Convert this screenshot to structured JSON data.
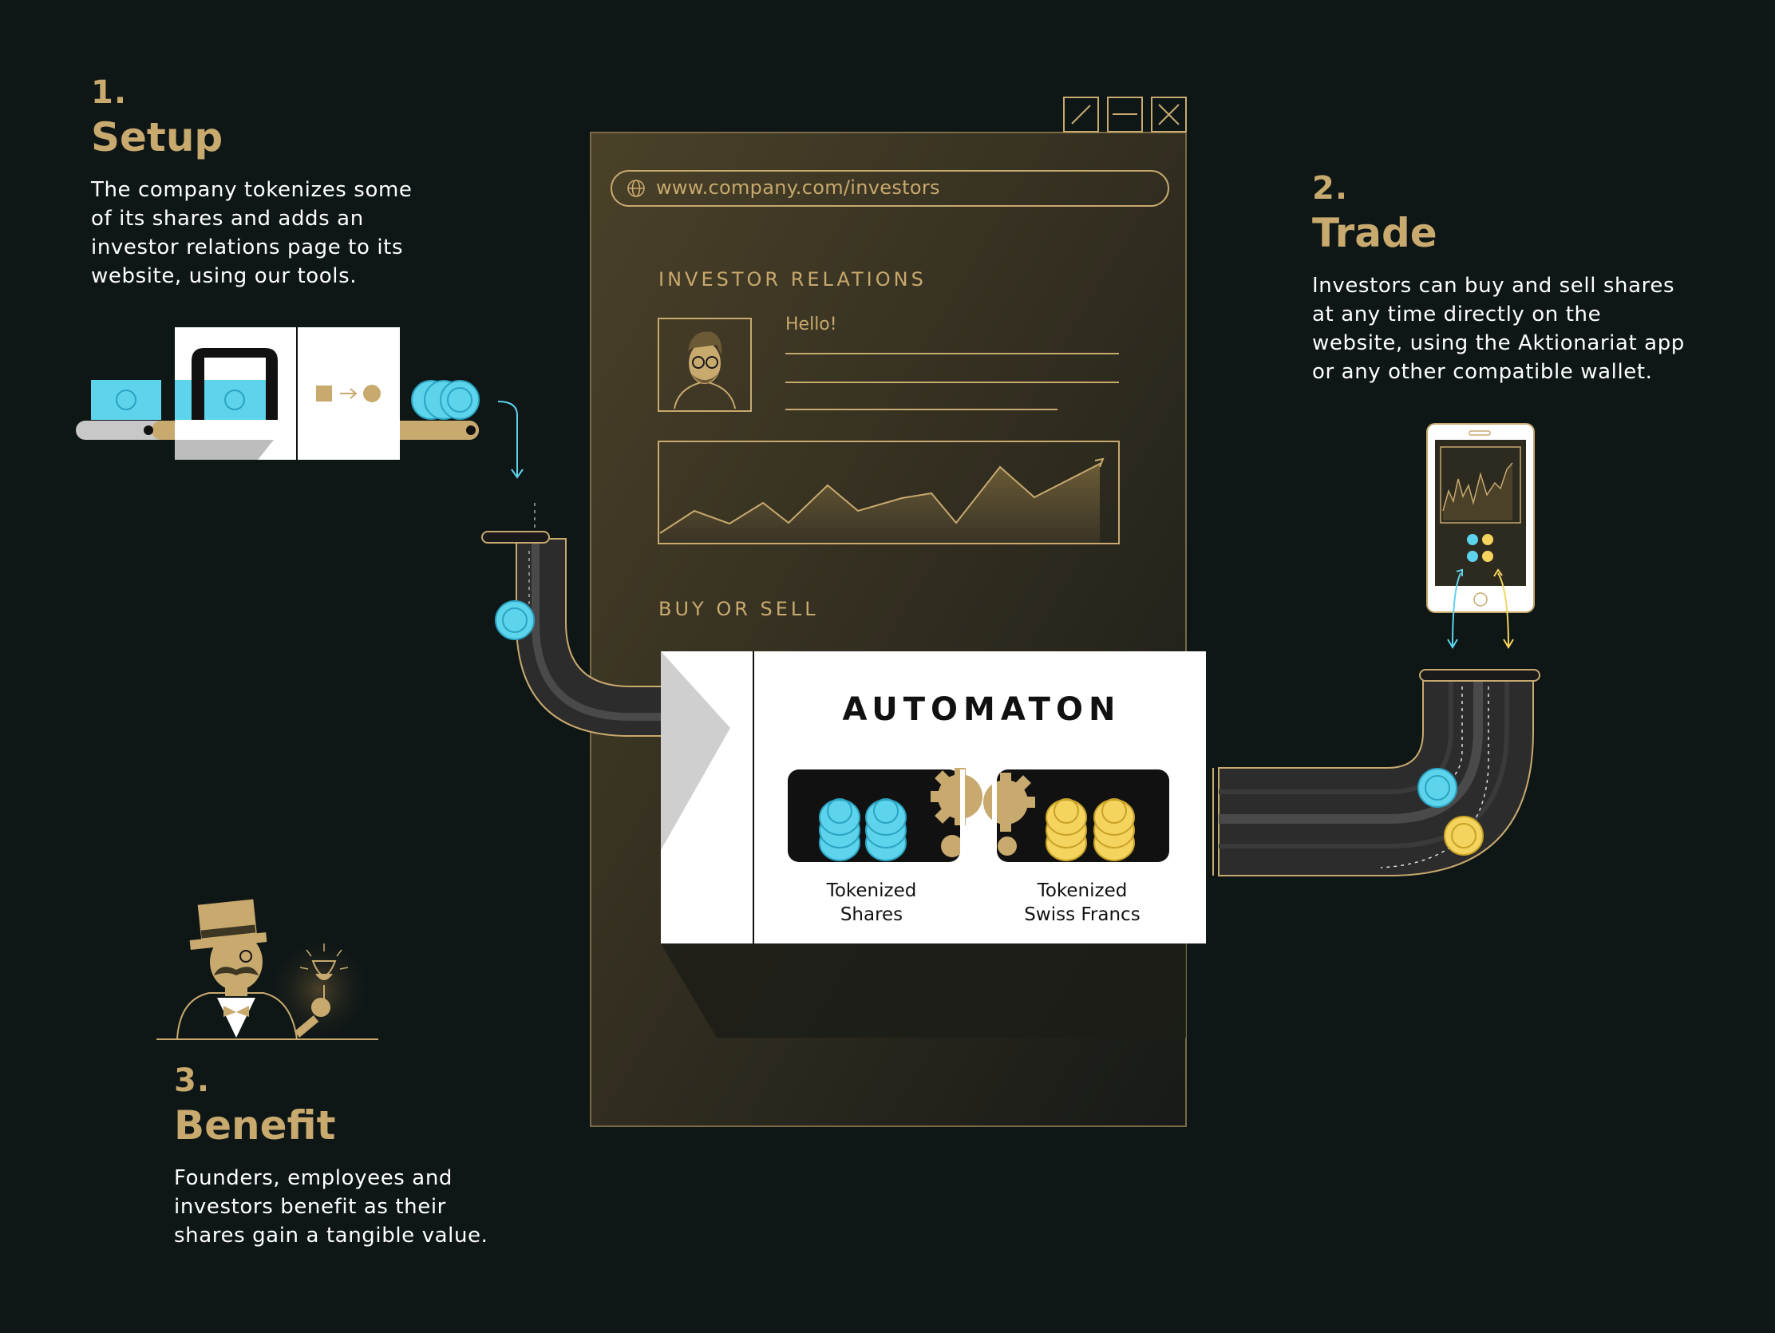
{
  "colors": {
    "background": "#0e1616",
    "gold": "#c8a96e",
    "coin_blue": "#5ed3ec",
    "coin_yellow": "#f4d35e",
    "panel": "#3d3623",
    "pipe": "#2c2c2c",
    "white": "#ffffff"
  },
  "steps": [
    {
      "number": "1.",
      "title": "Setup",
      "lines": [
        "The company tokenizes some",
        "of its shares and adds an",
        "investor relations page to its",
        "website, using our tools."
      ]
    },
    {
      "number": "2.",
      "title": "Trade",
      "lines": [
        "Investors can buy and sell shares",
        "at any time directly on the",
        "website, using the Aktionariat app",
        "or any other compatible wallet."
      ]
    },
    {
      "number": "3.",
      "title": "Benefit",
      "lines": [
        "Founders, employees and",
        "investors benefit as their",
        "shares gain a tangible value."
      ]
    }
  ],
  "browser": {
    "url": "www.company.com/investors",
    "investor_relations_label": "INVESTOR RELATIONS",
    "greeting": "Hello!",
    "buy_sell_label": "BUY OR SELL",
    "window_controls": [
      "edit-icon",
      "minimize-icon",
      "close-icon"
    ]
  },
  "automaton": {
    "title": "AUTOMATON",
    "pools": [
      {
        "line1": "Tokenized",
        "line2": "Shares",
        "coin": "blue"
      },
      {
        "line1": "Tokenized",
        "line2": "Swiss Francs",
        "coin": "yellow"
      }
    ]
  },
  "icons": [
    "globe-icon",
    "avatar-illustration",
    "price-chart",
    "smartphone-icon",
    "gear-icon",
    "coin-icon",
    "conveyor-belt",
    "tokenizer-machine",
    "pipe",
    "gentleman-illustration"
  ]
}
